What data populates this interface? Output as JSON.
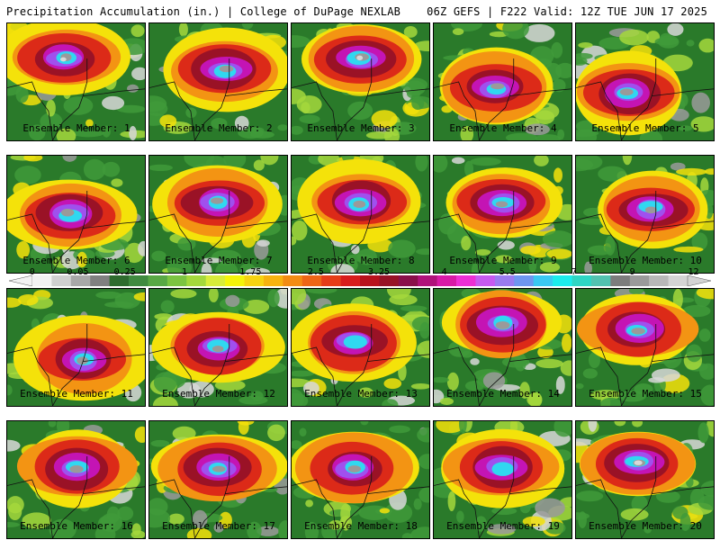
{
  "header": {
    "left": "Precipitation Accumulation (in.) | College of DuPage NEXLAB",
    "right": "06Z GEFS | F222 Valid: 12Z TUE JUN 17 2025"
  },
  "members": [
    {
      "label": "Ensemble Member: 1",
      "core": [
        0.42,
        0.3
      ],
      "peak": 6
    },
    {
      "label": "Ensemble Member: 2",
      "core": [
        0.55,
        0.4
      ],
      "peak": 5
    },
    {
      "label": "Ensemble Member: 3",
      "core": [
        0.5,
        0.3
      ],
      "peak": 6
    },
    {
      "label": "Ensemble Member: 4",
      "core": [
        0.45,
        0.55
      ],
      "peak": 5
    },
    {
      "label": "Ensemble Member: 5",
      "core": [
        0.38,
        0.6
      ],
      "peak": 5
    },
    {
      "label": "Ensemble Member: 6",
      "core": [
        0.45,
        0.5
      ],
      "peak": 5
    },
    {
      "label": "Ensemble Member: 7",
      "core": [
        0.5,
        0.4
      ],
      "peak": 5
    },
    {
      "label": "Ensemble Member: 8",
      "core": [
        0.5,
        0.4
      ],
      "peak": 5
    },
    {
      "label": "Ensemble Member: 9",
      "core": [
        0.5,
        0.4
      ],
      "peak": 5
    },
    {
      "label": "Ensemble Member: 10",
      "core": [
        0.55,
        0.45
      ],
      "peak": 5
    },
    {
      "label": "Ensemble Member: 11",
      "core": [
        0.55,
        0.6
      ],
      "peak": 5
    },
    {
      "label": "Ensemble Member: 12",
      "core": [
        0.5,
        0.5
      ],
      "peak": 5
    },
    {
      "label": "Ensemble Member: 13",
      "core": [
        0.45,
        0.45
      ],
      "peak": 4
    },
    {
      "label": "Ensemble Member: 14",
      "core": [
        0.5,
        0.3
      ],
      "peak": 5
    },
    {
      "label": "Ensemble Member: 15",
      "core": [
        0.45,
        0.35
      ],
      "peak": 5
    },
    {
      "label": "Ensemble Member: 16",
      "core": [
        0.5,
        0.4
      ],
      "peak": 5
    },
    {
      "label": "Ensemble Member: 17",
      "core": [
        0.5,
        0.4
      ],
      "peak": 5
    },
    {
      "label": "Ensemble Member: 18",
      "core": [
        0.45,
        0.4
      ],
      "peak": 5
    },
    {
      "label": "Ensemble Member: 19",
      "core": [
        0.5,
        0.4
      ],
      "peak": 4
    },
    {
      "label": "Ensemble Member: 20",
      "core": [
        0.45,
        0.35
      ],
      "peak": 6
    }
  ],
  "colorbar": {
    "labels": [
      "0",
      "0.05",
      "0.25",
      "1",
      "1.75",
      "2.5",
      "3.25",
      "4",
      "5.5",
      "7",
      "9",
      "12"
    ],
    "colors": [
      "#f2f2f2",
      "#d0d0d0",
      "#a8a8a8",
      "#808080",
      "#2e6b2e",
      "#3f8a3f",
      "#58a844",
      "#7cc441",
      "#a4d83c",
      "#d8ec3a",
      "#f4f40a",
      "#f7d311",
      "#f7b20f",
      "#f38b13",
      "#ee6516",
      "#e63c18",
      "#d81c1c",
      "#b8121c",
      "#981226",
      "#8a104a",
      "#b0127a",
      "#d81aa6",
      "#ec2fd4",
      "#c65af0",
      "#9a7bf0",
      "#6e96f0",
      "#3ac8f2",
      "#1cecec",
      "#2ed6c4",
      "#52c2b0",
      "#7c7c7c",
      "#9a9a9a",
      "#b8b8b8",
      "#d4d4d4"
    ],
    "label_positions": [
      0.033,
      0.098,
      0.165,
      0.25,
      0.344,
      0.437,
      0.527,
      0.62,
      0.71,
      0.805,
      0.888,
      0.975
    ]
  },
  "intensity_colors": {
    "bg_dark": "#2a7a2a",
    "green": "#3f9a3a",
    "yellowgreen": "#a4d83c",
    "yellow": "#f4e20a",
    "orange": "#f39413",
    "red": "#dc2a18",
    "darkred": "#9a1226",
    "magenta": "#c414b4",
    "purple": "#a050ee",
    "cyan": "#30d8f0",
    "gray": "#9a9a9a",
    "light": "#d8d8d8"
  }
}
